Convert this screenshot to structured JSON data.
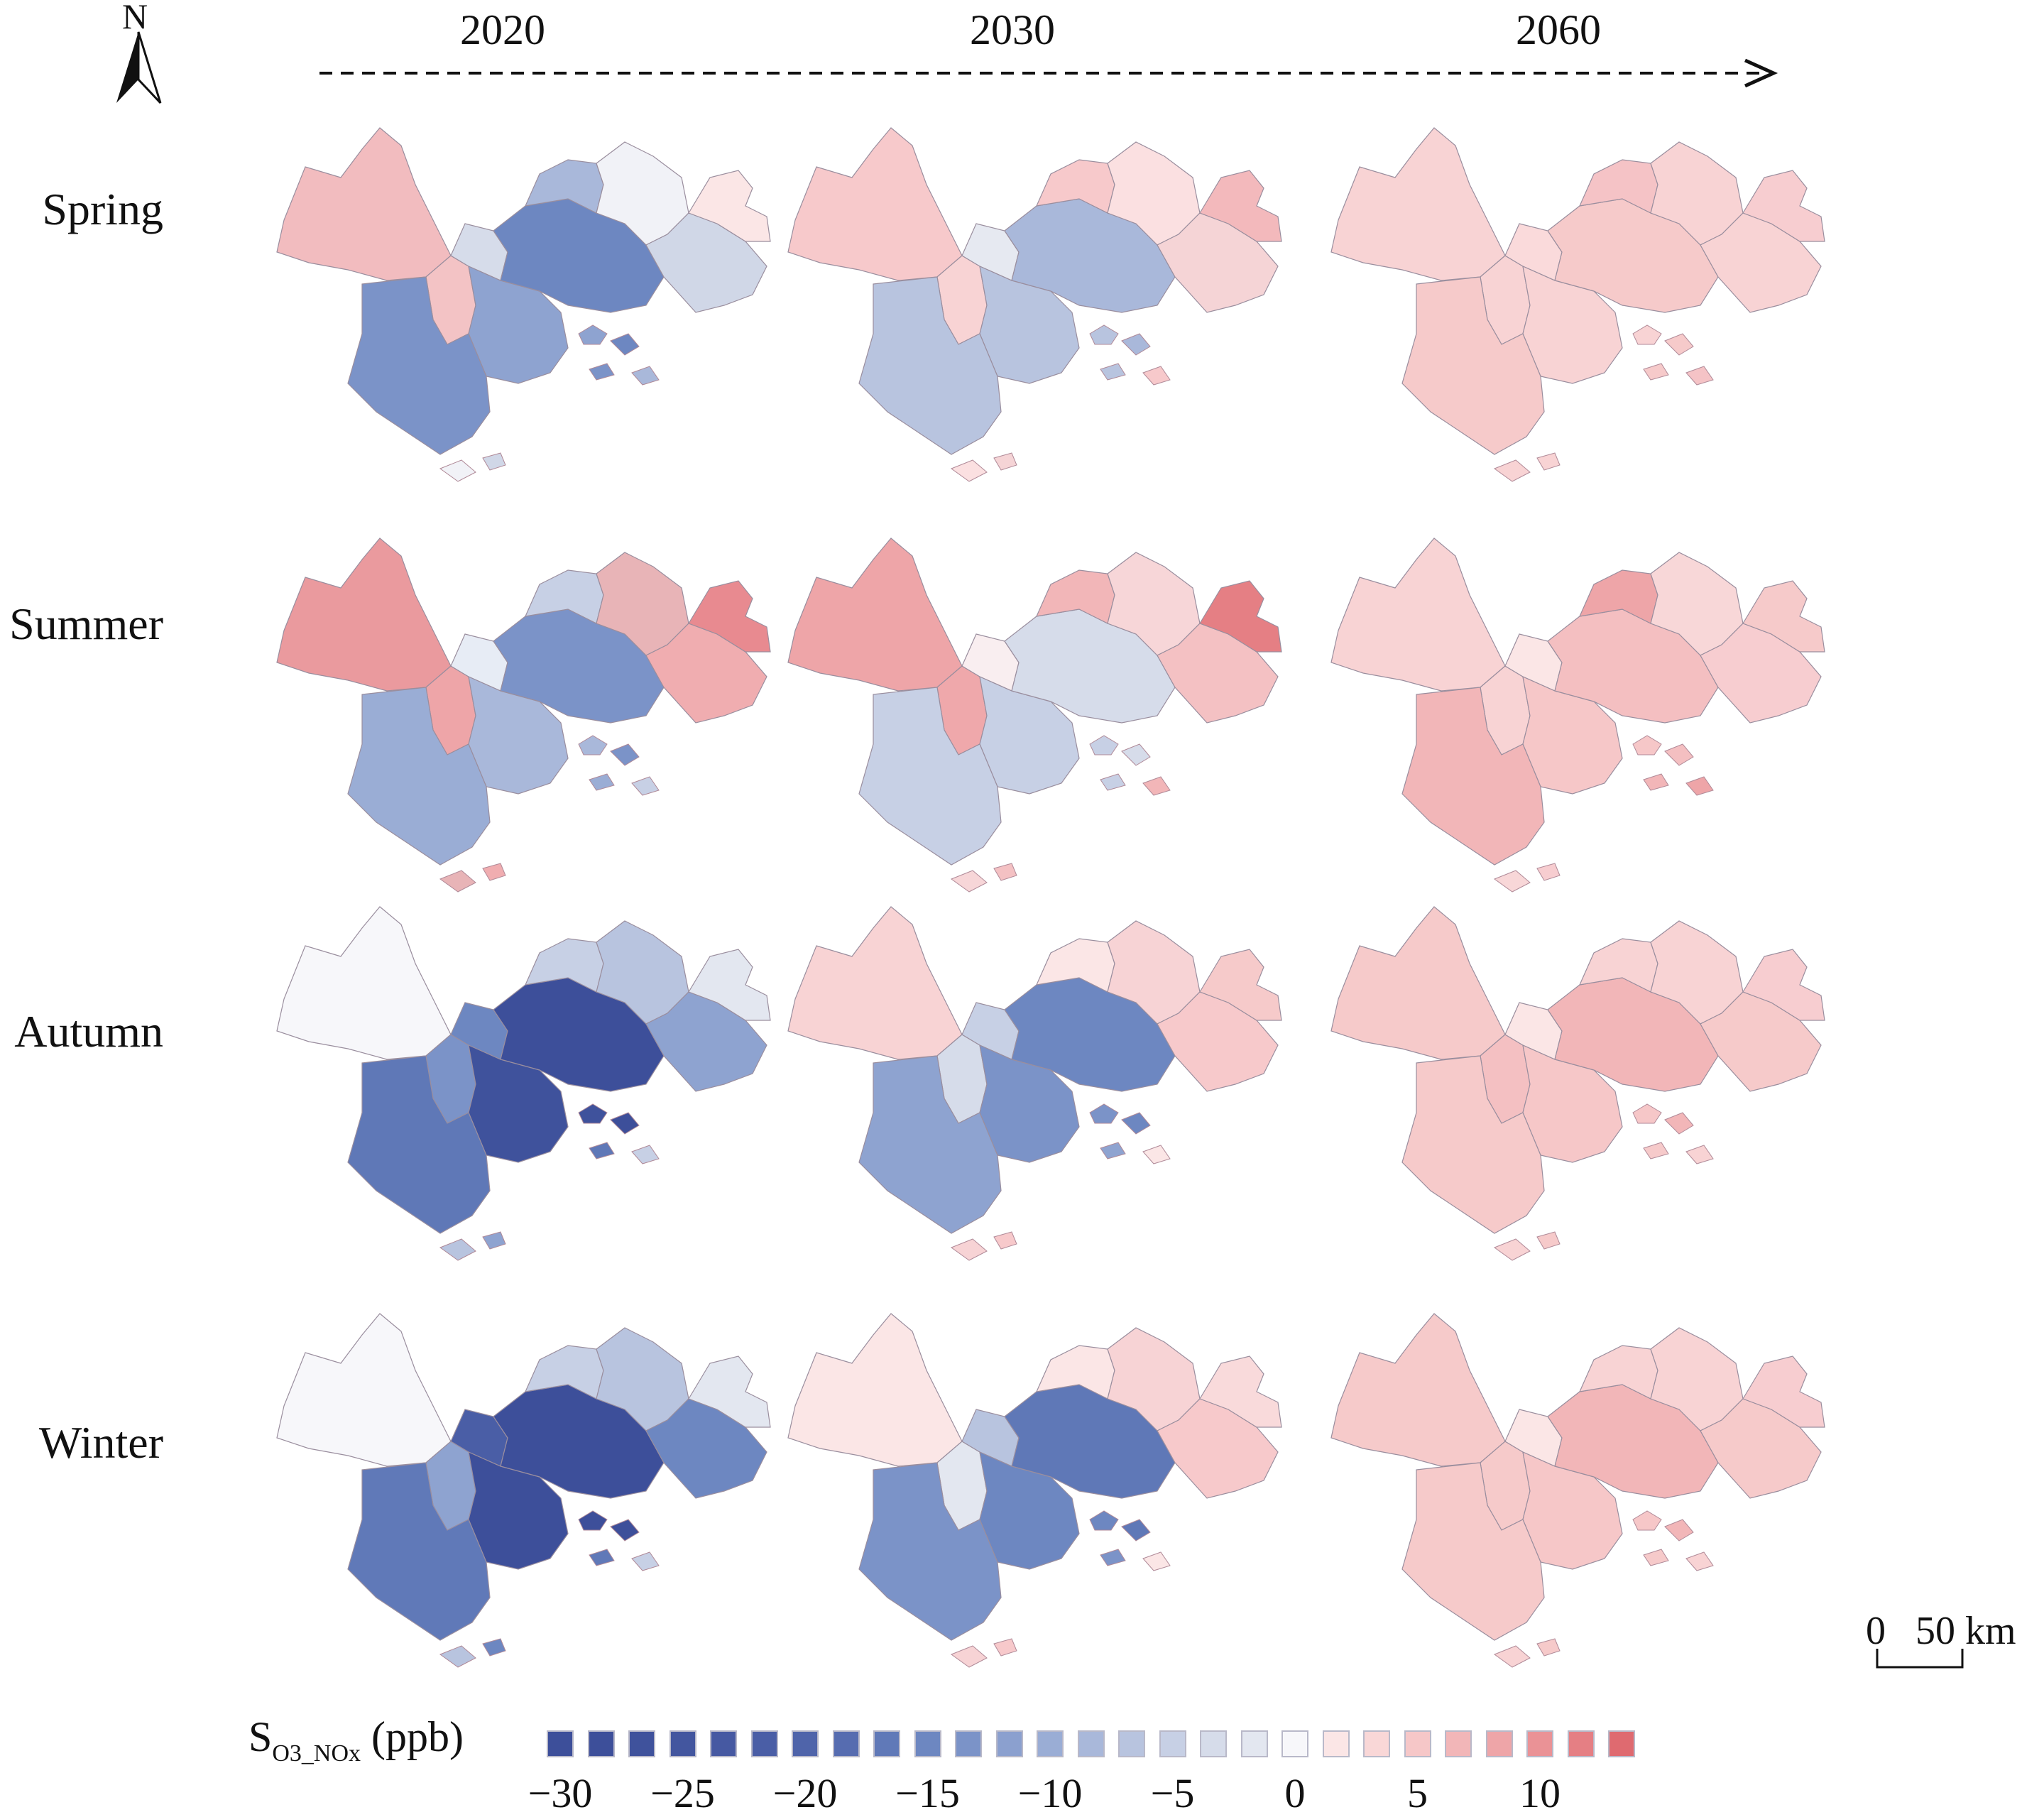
{
  "north": {
    "letter": "N",
    "icon": "north-arrow-icon"
  },
  "years": [
    "2020",
    "2030",
    "2060"
  ],
  "seasons": [
    "Spring",
    "Summer",
    "Autumn",
    "Winter"
  ],
  "legend": {
    "title_main": "S",
    "title_sub": "O3_NOx",
    "title_unit": "(ppb)",
    "ticks": [
      "−30",
      "−25",
      "−20",
      "−15",
      "−10",
      "−5",
      "0",
      "5",
      "10"
    ],
    "colors": [
      "#3d4f9a",
      "#3d4f9a",
      "#3f529c",
      "#43569f",
      "#4659a2",
      "#4a5ea6",
      "#4f64aa",
      "#566cb0",
      "#6079b8",
      "#6d87c1",
      "#7b93c8",
      "#8ba0cf",
      "#9aadd5",
      "#a9b8da",
      "#b8c4df",
      "#c7d0e5",
      "#d6dcea",
      "#e3e7f0",
      "#f7f7fa",
      "#fbe6e6",
      "#f9d7d7",
      "#f6c7c8",
      "#f2b6b8",
      "#eea5a8",
      "#ea9296",
      "#e57f84",
      "#df6a70"
    ]
  },
  "scalebar": {
    "label": "0   50 km"
  },
  "maps": [
    {
      "season": "Spring",
      "year": "2020",
      "fills": [
        "#f2bcbf",
        "#f3c3c5",
        "#d6dcea",
        "#8ea3d0",
        "#6d87c1",
        "#7b93c8",
        "#a9b8da",
        "#f1f2f7",
        "#d0d7e7",
        "#fbe6e6"
      ]
    },
    {
      "season": "Spring",
      "year": "2030",
      "fills": [
        "#f7c9cb",
        "#f8d3d4",
        "#e6e9f1",
        "#b8c4df",
        "#a9b8da",
        "#b8c4df",
        "#f7c9cb",
        "#fbe0e1",
        "#f5d4d6",
        "#f3b9bc"
      ]
    },
    {
      "season": "Spring",
      "year": "2060",
      "fills": [
        "#f8d3d4",
        "#f8d3d4",
        "#fadadb",
        "#f8d3d4",
        "#f6caca",
        "#f6caca",
        "#f5c3c6",
        "#f8d3d4",
        "#f8d3d4",
        "#f7cdd0"
      ]
    },
    {
      "season": "Summer",
      "year": "2020",
      "fills": [
        "#ea9a9e",
        "#eea5a8",
        "#e7ecf5",
        "#a9b8da",
        "#7b93c8",
        "#9aadd5",
        "#c7d0e5",
        "#e8b4b7",
        "#f0adb0",
        "#e88a90"
      ]
    },
    {
      "season": "Summer",
      "year": "2030",
      "fills": [
        "#eea5a8",
        "#efa8ab",
        "#f9eef0",
        "#c7d0e5",
        "#d6dcea",
        "#c7d0e5",
        "#f2b6b8",
        "#f7d6d8",
        "#f4c1c3",
        "#e57f84"
      ]
    },
    {
      "season": "Summer",
      "year": "2060",
      "fills": [
        "#f8d3d4",
        "#f8d3d4",
        "#fbe6e6",
        "#f6c7c8",
        "#f4bfc1",
        "#f2b6b8",
        "#eea5a8",
        "#f8d7d8",
        "#f7cdd0",
        "#f6caca"
      ]
    },
    {
      "season": "Autumn",
      "year": "2020",
      "fills": [
        "#f7f7fa",
        "#7b93c8",
        "#6d87c1",
        "#3f529c",
        "#3d4f9a",
        "#5f78b7",
        "#c7d0e5",
        "#b8c4df",
        "#8ea3d0",
        "#e3e7f0"
      ]
    },
    {
      "season": "Autumn",
      "year": "2030",
      "fills": [
        "#f8d3d4",
        "#d6dcea",
        "#c7d0e5",
        "#7b93c8",
        "#6d87c1",
        "#8ea3d0",
        "#fbe6e6",
        "#f7d3d5",
        "#f7c9cb",
        "#f6caca"
      ]
    },
    {
      "season": "Autumn",
      "year": "2060",
      "fills": [
        "#f6caca",
        "#f4c0c2",
        "#fbe6e6",
        "#f6c7c8",
        "#f2b6b8",
        "#f6caca",
        "#f8d3d4",
        "#f8d3d4",
        "#f6caca",
        "#f7cdd0"
      ]
    },
    {
      "season": "Winter",
      "year": "2020",
      "fills": [
        "#f7f7fa",
        "#8ea3d0",
        "#4a5ea6",
        "#3d4f9a",
        "#3d4f9a",
        "#6079b8",
        "#c7d0e5",
        "#b8c4df",
        "#6d87c1",
        "#e3e7f0"
      ]
    },
    {
      "season": "Winter",
      "year": "2030",
      "fills": [
        "#fbe6e6",
        "#e3e7f0",
        "#b8c4df",
        "#6d87c1",
        "#5f78b7",
        "#7b93c8",
        "#fbe6e6",
        "#f7d3d5",
        "#f7c9cb",
        "#f9dadb"
      ]
    },
    {
      "season": "Winter",
      "year": "2060",
      "fills": [
        "#f6caca",
        "#f6caca",
        "#fbe6e6",
        "#f6c7c8",
        "#f2b6b8",
        "#f6caca",
        "#f8d3d4",
        "#f8d3d4",
        "#f6caca",
        "#f7cdd0"
      ]
    }
  ]
}
